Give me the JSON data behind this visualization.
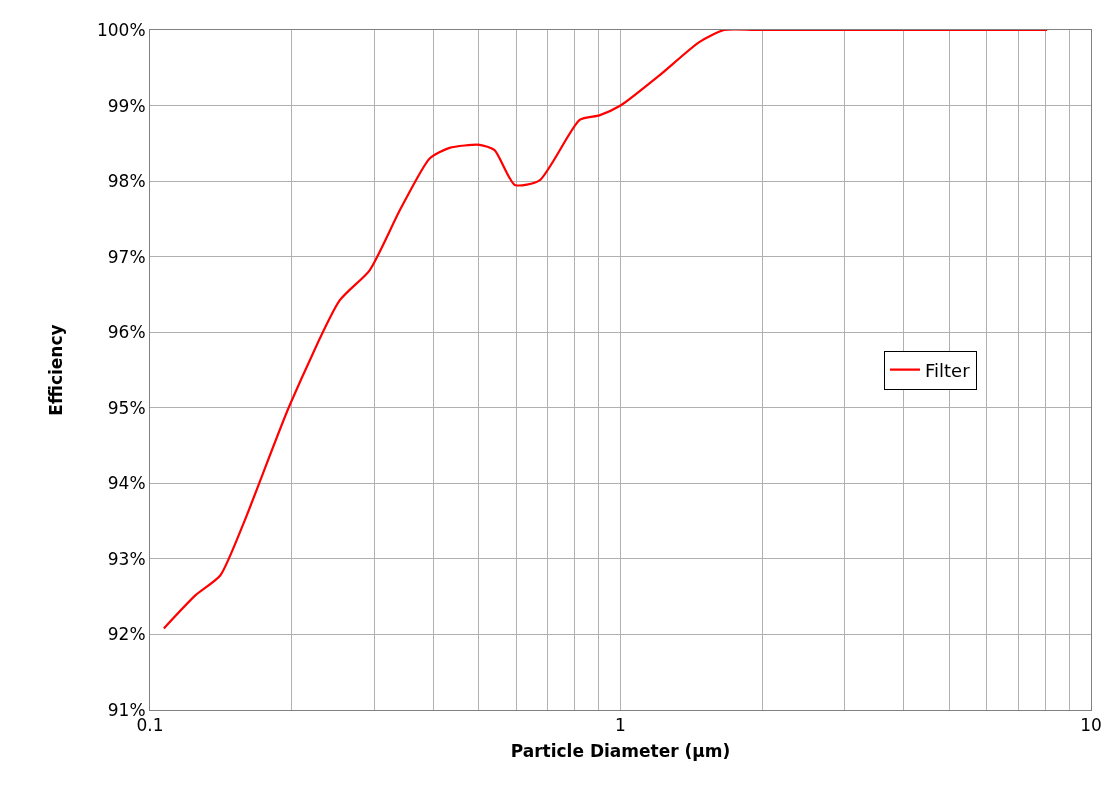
{
  "chart_data": {
    "type": "line",
    "xlabel": "Particle Diameter (µm)",
    "ylabel": "Efficiency",
    "log": "x",
    "xlim": [
      0.1,
      10
    ],
    "xticks": [
      {
        "value": 0.1,
        "label": "0.1"
      },
      {
        "value": 0.2,
        "label": null
      },
      {
        "value": 0.3,
        "label": null
      },
      {
        "value": 0.4,
        "label": null
      },
      {
        "value": 0.5,
        "label": null
      },
      {
        "value": 0.6,
        "label": null
      },
      {
        "value": 0.7,
        "label": null
      },
      {
        "value": 0.8,
        "label": null
      },
      {
        "value": 0.9,
        "label": null
      },
      {
        "value": 1,
        "label": "1"
      },
      {
        "value": 2,
        "label": null
      },
      {
        "value": 3,
        "label": null
      },
      {
        "value": 4,
        "label": null
      },
      {
        "value": 5,
        "label": null
      },
      {
        "value": 6,
        "label": null
      },
      {
        "value": 7,
        "label": null
      },
      {
        "value": 8,
        "label": null
      },
      {
        "value": 9,
        "label": null
      },
      {
        "value": 10,
        "label": "10"
      }
    ],
    "ylim": [
      91,
      100
    ],
    "yticks": [
      {
        "value": 91,
        "label": "91%"
      },
      {
        "value": 92,
        "label": "92%"
      },
      {
        "value": 93,
        "label": "93%"
      },
      {
        "value": 94,
        "label": "94%"
      },
      {
        "value": 95,
        "label": "95%"
      },
      {
        "value": 96,
        "label": "96%"
      },
      {
        "value": 97,
        "label": "97%"
      },
      {
        "value": 98,
        "label": "98%"
      },
      {
        "value": 99,
        "label": "99%"
      },
      {
        "value": 100,
        "label": "100%"
      }
    ],
    "grid": true,
    "legend": "right",
    "marker": "none",
    "line_style": "solid",
    "series": [
      {
        "name": "Filter",
        "color": "#ff0000",
        "x": [
          0.107,
          0.125,
          0.141,
          0.159,
          0.198,
          0.253,
          0.293,
          0.34,
          0.393,
          0.433,
          0.502,
          0.54,
          0.596,
          0.673,
          0.819,
          0.902,
          1.0,
          1.21,
          1.47,
          1.66,
          1.97,
          8.07
        ],
        "values": [
          92.08,
          92.52,
          92.78,
          93.51,
          95.03,
          96.42,
          96.82,
          97.62,
          98.3,
          98.44,
          98.48,
          98.41,
          97.95,
          98.01,
          98.81,
          98.87,
          99.0,
          99.4,
          99.84,
          100,
          100,
          100
        ]
      }
    ]
  }
}
